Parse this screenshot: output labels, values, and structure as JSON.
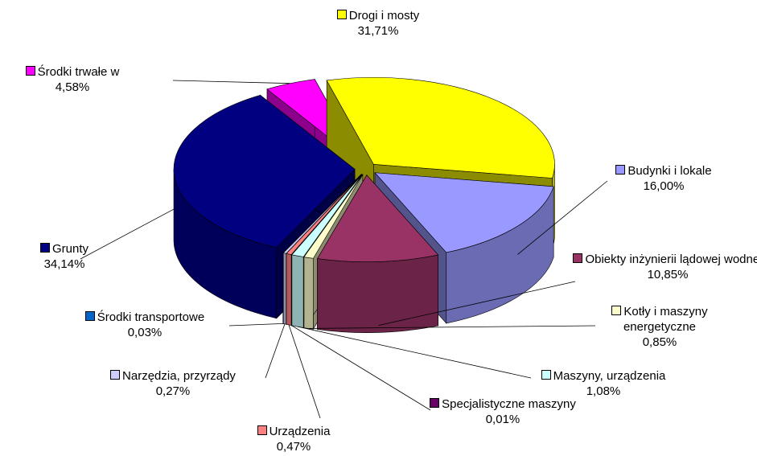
{
  "chart_data": {
    "type": "pie",
    "categories": [
      "Drogi i mosty",
      "Budynki i lokale",
      "Obiekty inżynierii lądowej wodnej",
      "Kotły i maszyny energetyczne",
      "Maszyny, urządzenia",
      "Specjalistyczne maszyny",
      "Urządzenia",
      "Narzędzia, przyrządy",
      "Środki transportowe",
      "Grunty",
      "Środki trwałe w"
    ],
    "values": [
      31.71,
      16.0,
      10.85,
      0.85,
      1.08,
      0.01,
      0.47,
      0.27,
      0.03,
      34.14,
      4.58
    ],
    "value_labels": [
      "31,71%",
      "16,00%",
      "10,85%",
      "0,85%",
      "1,08%",
      "0,01%",
      "0,47%",
      "0,27%",
      "0,03%",
      "34,14%",
      "4,58%"
    ],
    "colors": [
      "#ffff00",
      "#9999ff",
      "#993366",
      "#ffffcc",
      "#ccffff",
      "#660066",
      "#ff8080",
      "#ccccff",
      "#0066cc",
      "#000080",
      "#ff00ff"
    ]
  }
}
